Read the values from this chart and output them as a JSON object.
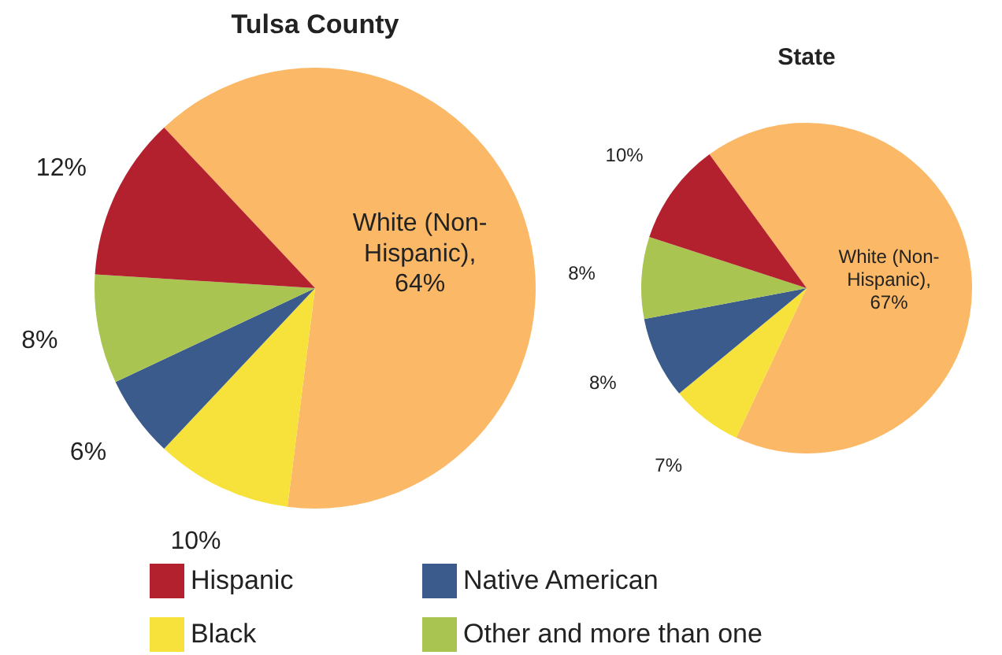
{
  "chart_data": [
    {
      "type": "pie",
      "title": "Tulsa County",
      "categories": [
        null,
        "Black",
        "Native American",
        "Other and more than one",
        "Hispanic"
      ],
      "values": [
        64,
        10,
        6,
        8,
        12
      ],
      "colors": [
        "#fbb866",
        "#f7e23c",
        "#3b5b8c",
        "#a9c450",
        "#b3212f"
      ],
      "value_labels": [
        "White (Non-Hispanic), 64%",
        "10%",
        "6%",
        "8%",
        "12%"
      ],
      "legend": "bottom"
    },
    {
      "type": "pie",
      "title": "State",
      "values": [
        67,
        7,
        8,
        8,
        10
      ],
      "colors": [
        "#fbb866",
        "#f7e23c",
        "#3b5b8c",
        "#a9c450",
        "#b3212f"
      ],
      "value_labels": [
        "White (Non-Hispanic), 67%",
        "7%",
        "8%",
        "8%",
        "10%"
      ]
    }
  ]
}
